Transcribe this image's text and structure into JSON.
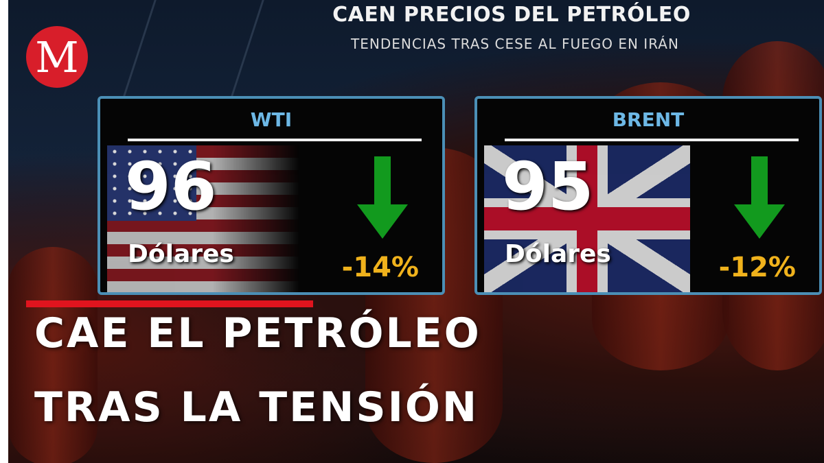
{
  "header": {
    "title": "CAEN PRECIOS DEL PETRÓLEO",
    "subtitle": "TENDENCIAS TRAS CESE AL FUEGO EN IRÁN"
  },
  "logo": {
    "letter": "M",
    "color": "#d81e2a"
  },
  "cards": [
    {
      "name": "WTI",
      "price": "96",
      "unit": "Dólares",
      "change": "-14%",
      "trend": "down",
      "flag": "usa-flag"
    },
    {
      "name": "BRENT",
      "price": "95",
      "unit": "Dólares",
      "change": "-12%",
      "trend": "down",
      "flag": "uk-flag"
    }
  ],
  "colors": {
    "accent_blue": "#6db8e6",
    "down_green": "#129a1e",
    "change_yellow": "#f0b21c",
    "red_bar": "#e0141e"
  },
  "headline": {
    "line1": "CAE EL PETRÓLEO",
    "line2": "TRAS LA TENSIÓN"
  }
}
